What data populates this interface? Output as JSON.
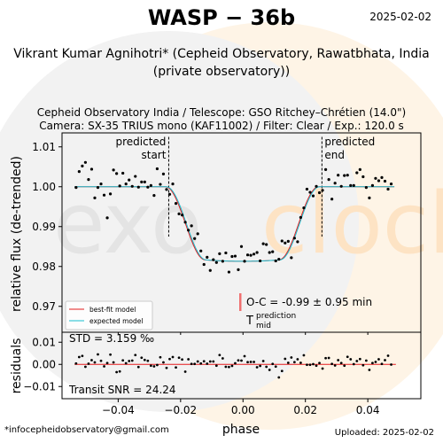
{
  "header": {
    "title": "WASP − 36b",
    "date": "2025-02-02",
    "author_line1": "Vikrant Kumar Agnihotri* (Cepheid Observatory, Rawatbhata, India",
    "author_line2": "(private observatory))",
    "obs_line1": "Cepheid Observatory India / Telescope: GSO Ritchey–Chrétien (14.0\")",
    "obs_line2": "Camera: SX-35 TRIUS mono (KAF11002) / Filter: Clear / Exp.: 120.0 s"
  },
  "footer": {
    "email": "*infocepheidobservatory@gmail.com",
    "uploaded": "Uploaded: 2025-02-02"
  },
  "watermark": {
    "left_text": "exo",
    "right_text": "clock",
    "colors": {
      "left": "#e8e8e8",
      "right": "#fde8cd"
    }
  },
  "chart_data": {
    "type": "scatter",
    "xlabel": "phase",
    "ylabel": "relative flux (de-trended)",
    "xlim": [
      -0.058,
      0.057
    ],
    "ylim": [
      0.9635,
      1.0135
    ],
    "xticks": [
      -0.04,
      -0.02,
      0.0,
      0.02,
      0.04
    ],
    "xtick_labels": [
      "−0.04",
      "−0.02",
      "0.00",
      "0.02",
      "0.04"
    ],
    "yticks": [
      0.97,
      0.98,
      0.99,
      1.0,
      1.01
    ],
    "ytick_labels": [
      "0.97",
      "0.98",
      "0.99",
      "1.00",
      "1.01"
    ],
    "predicted_start": {
      "phase": -0.0238,
      "label_line1": "predicted",
      "label_line2": "start"
    },
    "predicted_end": {
      "phase": 0.0253,
      "label_line1": "predicted",
      "label_line2": "end"
    },
    "transit_model": {
      "depth": 0.0187,
      "t1": -0.0238,
      "t2": -0.0118,
      "t3": 0.0118,
      "t4": 0.0253
    },
    "series": [
      {
        "name": "best-fit model",
        "color": "#e41a1c",
        "center": -0.0003
      },
      {
        "name": "expected model",
        "color": "#17becf",
        "center": 0.0
      }
    ],
    "oc": {
      "text": "O-C = -0.99 ± 0.95 min",
      "bar_color": "#f07070",
      "tmid_label": "T",
      "tmid_sup": "prediction",
      "tmid_sub": "mid"
    },
    "flux_points": {
      "x": [
        -0.0535,
        -0.0525,
        -0.0515,
        -0.0505,
        -0.0495,
        -0.0485,
        -0.0475,
        -0.0465,
        -0.0455,
        -0.0445,
        -0.0435,
        -0.0425,
        -0.0415,
        -0.0405,
        -0.0395,
        -0.0385,
        -0.0375,
        -0.0365,
        -0.0355,
        -0.0345,
        -0.0335,
        -0.0325,
        -0.0315,
        -0.0305,
        -0.0295,
        -0.0285,
        -0.0275,
        -0.0265,
        -0.0255,
        -0.0245,
        -0.0235,
        -0.0225,
        -0.0215,
        -0.0205,
        -0.0195,
        -0.0185,
        -0.0175,
        -0.0165,
        -0.0155,
        -0.0145,
        -0.0135,
        -0.0125,
        -0.0115,
        -0.0105,
        -0.0095,
        -0.0085,
        -0.0075,
        -0.0065,
        -0.0055,
        -0.0045,
        -0.0035,
        -0.0025,
        -0.0015,
        -0.0005,
        0.0005,
        0.0015,
        0.0025,
        0.0035,
        0.0045,
        0.0055,
        0.0065,
        0.0075,
        0.0085,
        0.0095,
        0.0105,
        0.0115,
        0.0125,
        0.0135,
        0.0145,
        0.0155,
        0.0165,
        0.0175,
        0.0185,
        0.0195,
        0.0205,
        0.0215,
        0.0225,
        0.0235,
        0.0245,
        0.0255,
        0.0265,
        0.0275,
        0.0285,
        0.0295,
        0.0305,
        0.0315,
        0.0325,
        0.0335,
        0.0345,
        0.0355,
        0.0365,
        0.0375,
        0.0385,
        0.0395,
        0.0405,
        0.0415,
        0.0425,
        0.0435,
        0.0445,
        0.0455,
        0.0465,
        0.0475
      ],
      "y": [
        0.9998,
        1.0038,
        1.0052,
        1.0061,
        1.0018,
        1.0044,
        0.9972,
        0.9998,
        1.0007,
        0.9979,
        0.9922,
        0.9982,
        1.0042,
        1.0033,
        1.0002,
        1.0034,
        1.0007,
        1.0017,
        1.0001,
        1.0026,
        0.9999,
        1.0012,
        1.0012,
        0.9999,
        1.0003,
        0.9978,
        1.0045,
        1.0006,
        1.0032,
        0.9993,
        0.9981,
        1.0007,
        0.9958,
        0.9932,
        0.9929,
        0.9911,
        0.9891,
        0.9902,
        0.987,
        0.9882,
        0.9839,
        0.9805,
        0.9823,
        0.979,
        0.9817,
        0.981,
        0.9832,
        0.9813,
        0.9834,
        0.9786,
        0.9825,
        0.9826,
        0.9792,
        0.985,
        0.9813,
        0.9829,
        0.9828,
        0.9831,
        0.9835,
        0.9814,
        0.9857,
        0.9855,
        0.9835,
        0.9837,
        0.9814,
        0.9818,
        0.9864,
        0.9859,
        0.9863,
        0.9822,
        0.9871,
        0.9862,
        0.9923,
        0.9947,
        0.9994,
        0.9986,
        0.9977,
        1.0001,
        0.9985,
        0.9991,
        1.0043,
        1.0018,
        0.9969,
        1.0009,
        1.0029,
        1.0001,
        1.0028,
        1.0029,
        1.0003,
        1.0003,
        1.0035,
        1.0043,
        1.0025,
        0.9998,
        0.9972,
        1.0003,
        1.0021,
        1.0015,
        1.0023,
        1.0014,
        0.9994,
        1.0007
      ]
    },
    "residuals": {
      "ylim": [
        -0.0155,
        0.0145
      ],
      "yticks": [
        -0.01,
        0.0,
        0.01
      ],
      "ytick_labels": [
        "−0.01",
        "0.00",
        "0.01"
      ],
      "ylabel": "residuals",
      "std_text": "STD = 3.159 ‰",
      "snr_text": "Transit SNR = 24.24",
      "y": [
        0.0004,
        0.0033,
        0.0038,
        -0.0011,
        0.0003,
        0.0019,
        0.0009,
        0.0045,
        0.0016,
        -0.0009,
        0.0006,
        0.0044,
        0.0009,
        -0.0035,
        -0.0032,
        0.0018,
        0.0005,
        0.0015,
        0.0017,
        0.0042,
        -0.0012,
        0.003,
        0.002,
        0.0016,
        -0.0006,
        -0.0009,
        -0.0003,
        0.0032,
        0.0009,
        -0.0016,
        0.0024,
        0.0033,
        -0.0014,
        0.003,
        0.0022,
        -0.0033,
        0.0023,
        0.0002,
        0.0002,
        0.0013,
        0.0004,
        0.0014,
        0.0003,
        0.0013,
        0.0013,
        -0.0006,
        0.0042,
        0.0027,
        -0.0011,
        -0.0012,
        -0.0007,
        0.0005,
        0.0018,
        0.0017,
        0.0037,
        0.001,
        0.0011,
        0.0011,
        -0.0013,
        -0.0007,
        0.0015,
        -0.0011,
        -0.0025,
        0.0002,
        -0.001,
        -0.0059,
        -0.003,
        0.0025,
        0.0007,
        0.0031,
        0.001,
        0.0023,
        0.0007,
        0.0041,
        -0.0002,
        -0.0002,
        0.0001,
        -0.0006,
        0.0006,
        -0.0019,
        0.0028,
        0.0029,
        0.0002,
        -0.0005,
        0.0019,
        0.0006,
        -0.0006,
        0.0034,
        0.0023,
        0.0001,
        0.0015,
        0.0024,
        -0.0004,
        0.0017,
        -0.0025,
        0.0006,
        0.0011,
        0.0023,
        0.0002,
        0.0019,
        0.0039,
        -0.0001
      ]
    }
  }
}
